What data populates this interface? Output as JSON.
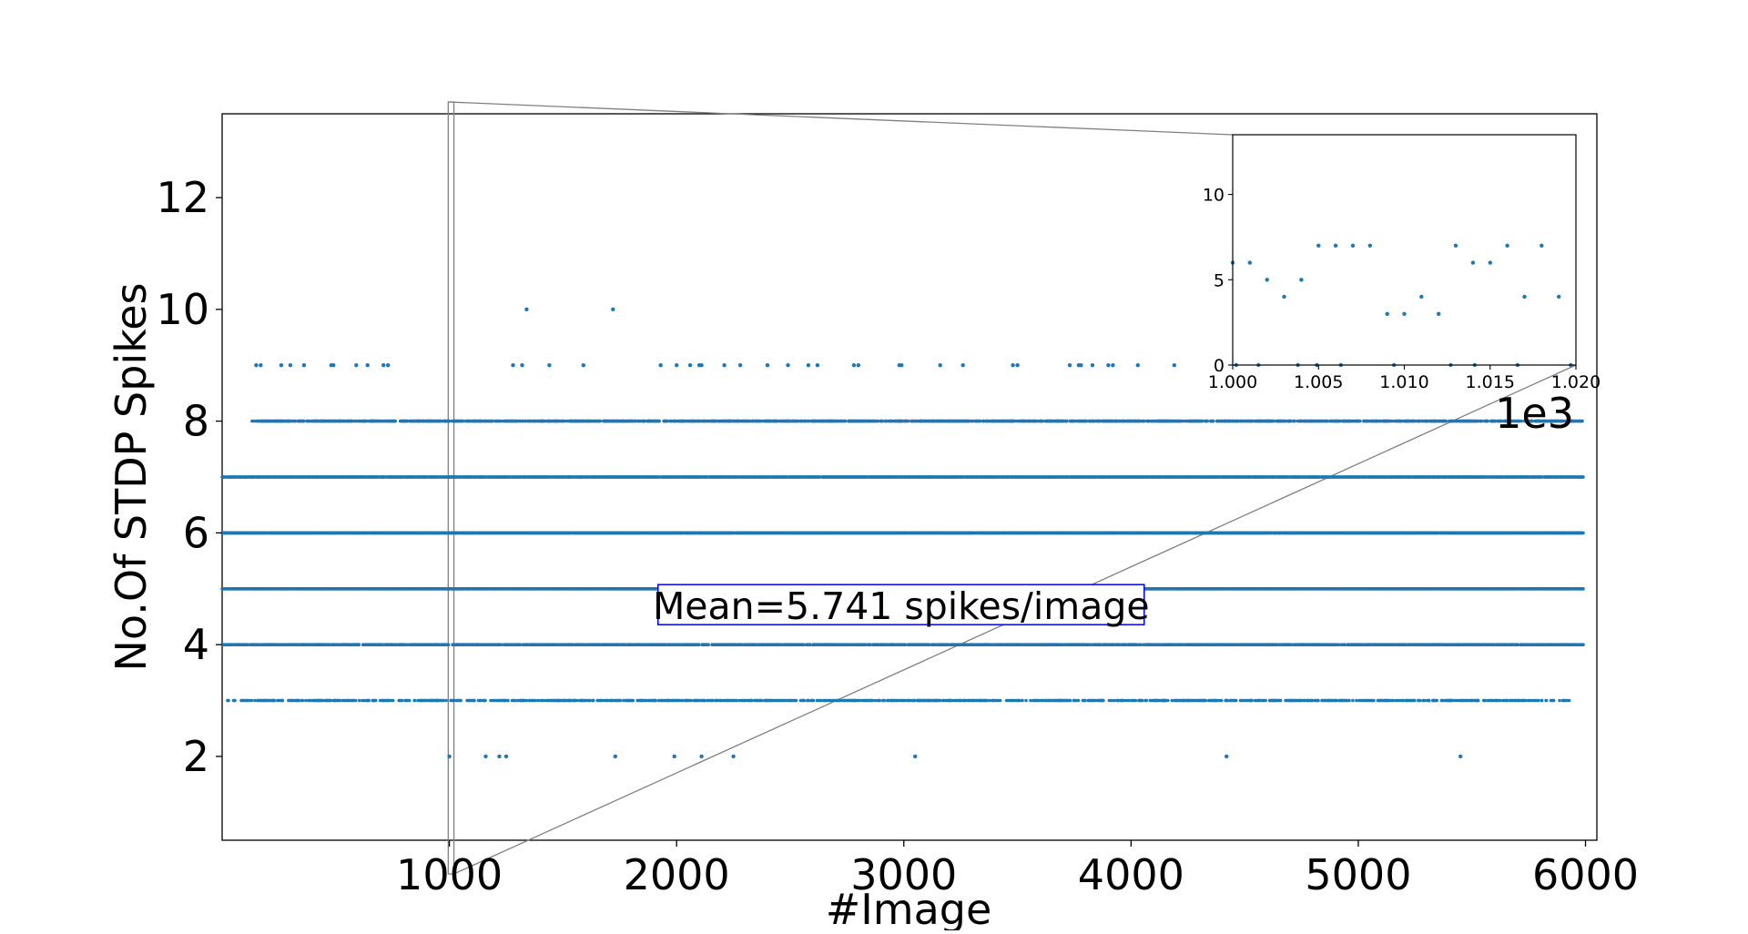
{
  "chart_data": {
    "type": "scatter",
    "title": "",
    "xlabel": "#Image",
    "ylabel": "No.Of STDP Spikes",
    "xlim": [
      0,
      6050
    ],
    "ylim": [
      0.5,
      13.5
    ],
    "xticks": [
      1000,
      2000,
      3000,
      4000,
      5000,
      6000
    ],
    "yticks": [
      2,
      4,
      6,
      8,
      10,
      12
    ],
    "xtick_labels": [
      "1000",
      "2000",
      "3000",
      "4000",
      "5000",
      "6000"
    ],
    "ytick_labels": [
      "2",
      "4",
      "6",
      "8",
      "10",
      "12"
    ],
    "grid": false,
    "marker_color": "#1f77b4",
    "annotation": {
      "text": "Mean=5.741 spikes/image",
      "x": 3000,
      "y": 4.7,
      "box_color": "#0000ff"
    },
    "sparse_points": [
      [
        1340,
        10
      ],
      [
        1720,
        10
      ],
      [
        150,
        9
      ],
      [
        170,
        9
      ],
      [
        260,
        9
      ],
      [
        300,
        9
      ],
      [
        360,
        9
      ],
      [
        480,
        9
      ],
      [
        490,
        9
      ],
      [
        590,
        9
      ],
      [
        640,
        9
      ],
      [
        710,
        9
      ],
      [
        730,
        9
      ],
      [
        1280,
        9
      ],
      [
        1320,
        9
      ],
      [
        1440,
        9
      ],
      [
        1590,
        9
      ],
      [
        1930,
        9
      ],
      [
        2000,
        9
      ],
      [
        2060,
        9
      ],
      [
        2100,
        9
      ],
      [
        2110,
        9
      ],
      [
        2210,
        9
      ],
      [
        2280,
        9
      ],
      [
        2400,
        9
      ],
      [
        2490,
        9
      ],
      [
        2580,
        9
      ],
      [
        2620,
        9
      ],
      [
        2780,
        9
      ],
      [
        2800,
        9
      ],
      [
        2980,
        9
      ],
      [
        2990,
        9
      ],
      [
        3160,
        9
      ],
      [
        3260,
        9
      ],
      [
        3480,
        9
      ],
      [
        3500,
        9
      ],
      [
        3730,
        9
      ],
      [
        3770,
        9
      ],
      [
        3780,
        9
      ],
      [
        3830,
        9
      ],
      [
        3900,
        9
      ],
      [
        3920,
        9
      ],
      [
        4030,
        9
      ],
      [
        4190,
        9
      ],
      [
        1000,
        2
      ],
      [
        1160,
        2
      ],
      [
        1220,
        2
      ],
      [
        1250,
        2
      ],
      [
        1730,
        2
      ],
      [
        1990,
        2
      ],
      [
        2110,
        2
      ],
      [
        2250,
        2
      ],
      [
        3050,
        2
      ],
      [
        4420,
        2
      ],
      [
        5450,
        2
      ]
    ],
    "dense_rows": [
      {
        "y": 8,
        "x_start": 130,
        "x_end": 5990,
        "density": 0.55
      },
      {
        "y": 7,
        "x_start": 0,
        "x_end": 5990,
        "density": 0.9
      },
      {
        "y": 6,
        "x_start": 0,
        "x_end": 5990,
        "density": 0.95
      },
      {
        "y": 5,
        "x_start": 0,
        "x_end": 5990,
        "density": 0.92
      },
      {
        "y": 4,
        "x_start": 0,
        "x_end": 5990,
        "density": 0.6
      },
      {
        "y": 3,
        "x_start": 20,
        "x_end": 5930,
        "density": 0.35
      }
    ],
    "zoom_region": {
      "x0": 995,
      "x1": 1020,
      "y0": 0,
      "y1": 13.5
    },
    "inset": {
      "xlim": [
        1000,
        1020
      ],
      "ylim": [
        0,
        13.5
      ],
      "xticks": [
        1000,
        1005,
        1010,
        1015,
        1020
      ],
      "yticks": [
        0,
        5,
        10
      ],
      "xtick_labels": [
        "1.000",
        "1.005",
        "1.010",
        "1.015",
        "1.020"
      ],
      "ytick_labels": [
        "0",
        "5",
        "10"
      ],
      "offset_text": "1e3",
      "points": [
        [
          1000,
          6
        ],
        [
          1001,
          6
        ],
        [
          1002,
          5
        ],
        [
          1003,
          4
        ],
        [
          1004,
          5
        ],
        [
          1005,
          7
        ],
        [
          1006,
          7
        ],
        [
          1007,
          7
        ],
        [
          1008,
          7
        ],
        [
          1009,
          3
        ],
        [
          1010,
          3
        ],
        [
          1011,
          4
        ],
        [
          1012,
          3
        ],
        [
          1013,
          7
        ],
        [
          1014,
          6
        ],
        [
          1015,
          6
        ],
        [
          1016,
          7
        ],
        [
          1017,
          4
        ],
        [
          1018,
          7
        ],
        [
          1019,
          4
        ],
        [
          1000.2,
          0
        ],
        [
          1001.5,
          0
        ],
        [
          1003.8,
          0
        ],
        [
          1004.9,
          0
        ],
        [
          1006.3,
          0
        ],
        [
          1009.4,
          0
        ],
        [
          1012.7,
          0
        ],
        [
          1014.1,
          0
        ],
        [
          1016.6,
          0
        ],
        [
          1019.7,
          0
        ]
      ]
    }
  }
}
